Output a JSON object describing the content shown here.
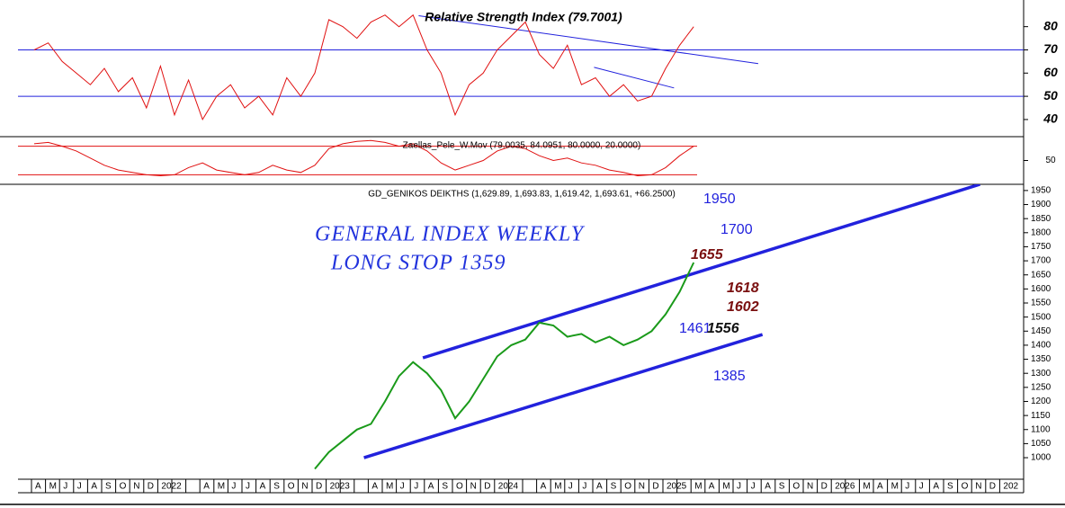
{
  "chart_data": [
    {
      "type": "line",
      "title": "Relative Strength Index (79.7001)",
      "ylim": [
        33,
        88
      ],
      "yticks": [
        40,
        50,
        60,
        70,
        80
      ],
      "levels": [
        70,
        50
      ],
      "level_color": "#2222dd",
      "series": [
        {
          "name": "RSI",
          "color": "#e01010",
          "values": [
            70,
            73,
            65,
            60,
            55,
            62,
            52,
            58,
            45,
            63,
            42,
            57,
            40,
            50,
            55,
            45,
            50,
            42,
            58,
            50,
            60,
            83,
            80,
            75,
            82,
            85,
            80,
            85,
            70,
            60,
            42,
            55,
            60,
            70,
            76,
            82,
            68,
            62,
            72,
            55,
            58,
            50,
            55,
            48,
            50,
            62,
            72,
            80
          ]
        }
      ],
      "trendlines": [
        {
          "x": [
            27.4,
            51.6
          ],
          "y": [
            84.7,
            64.1
          ]
        },
        {
          "x": [
            39.9,
            45.6
          ],
          "y": [
            62.5,
            53.6
          ]
        }
      ],
      "trend_color": "#2222dd"
    },
    {
      "type": "line",
      "title": "Zaellas_Pele_W.Mov (79.0035, 84.0951, 80.0000, 20.0000)",
      "ylim": [
        0,
        100
      ],
      "yticks": [
        50
      ],
      "levels": [
        80,
        20
      ],
      "level_color": "#e01010",
      "series": [
        {
          "name": "Zaellas",
          "color": "#e01010",
          "values": [
            85,
            88,
            80,
            70,
            55,
            40,
            30,
            25,
            20,
            18,
            20,
            35,
            45,
            30,
            25,
            20,
            25,
            40,
            30,
            25,
            40,
            75,
            85,
            90,
            92,
            88,
            80,
            85,
            70,
            45,
            30,
            40,
            50,
            70,
            80,
            75,
            60,
            50,
            55,
            45,
            40,
            30,
            25,
            18,
            20,
            35,
            60,
            80
          ]
        }
      ],
      "trendlines": [],
      "trend_color": "#e01010"
    },
    {
      "type": "line",
      "title": "GD_GENIKOS DEIKTHS (1,629.89, 1,693.83, 1,619.42, 1,693.61, +66.2500)",
      "ylim": [
        917,
        1972
      ],
      "yticks": [
        1000,
        1050,
        1100,
        1150,
        1200,
        1250,
        1300,
        1350,
        1400,
        1450,
        1500,
        1550,
        1600,
        1650,
        1700,
        1750,
        1800,
        1850,
        1900,
        1950
      ],
      "levels": [],
      "level_color": "#2222dd",
      "series": [
        {
          "name": "GD",
          "color": "#1a9a1a",
          "values": [
            null,
            null,
            null,
            null,
            null,
            null,
            null,
            null,
            null,
            null,
            null,
            null,
            null,
            null,
            null,
            null,
            null,
            null,
            null,
            null,
            960,
            1020,
            1060,
            1100,
            1120,
            1200,
            1290,
            1340,
            1300,
            1240,
            1140,
            1200,
            1280,
            1360,
            1400,
            1420,
            1480,
            1470,
            1430,
            1440,
            1410,
            1430,
            1400,
            1420,
            1450,
            1510,
            1590,
            1694
          ]
        }
      ],
      "trendlines": [
        {
          "x": [
            27.7,
            67.4
          ],
          "y": [
            1355,
            1972
          ]
        },
        {
          "x": [
            23.5,
            51.9
          ],
          "y": [
            1000,
            1438
          ]
        }
      ],
      "trend_color": "#2222dd",
      "notes": [
        "GENERAL INDEX WEEKLY",
        "LONG STOP 1359"
      ],
      "price_labels": [
        "1950",
        "1700",
        "1655",
        "1618",
        "1602",
        "1461",
        "1556",
        "1385"
      ]
    }
  ],
  "x_axis": {
    "categories": [
      "A",
      "M",
      "J",
      "J",
      "A",
      "S",
      "O",
      "N",
      "D",
      "2022",
      null,
      null,
      "A",
      "M",
      "J",
      "J",
      "A",
      "S",
      "O",
      "N",
      "D",
      "2023",
      null,
      null,
      "A",
      "M",
      "J",
      "J",
      "A",
      "S",
      "O",
      "N",
      "D",
      "2024",
      null,
      null,
      "A",
      "M",
      "J",
      "J",
      "A",
      "S",
      "O",
      "N",
      "D",
      "2025",
      null,
      "M",
      "A",
      "M",
      "J",
      "J",
      "A",
      "S",
      "O",
      "N",
      "D",
      "2026",
      null,
      "M",
      "A",
      "M",
      "J",
      "J",
      "A",
      "S",
      "O",
      "N",
      "D",
      "202"
    ]
  }
}
